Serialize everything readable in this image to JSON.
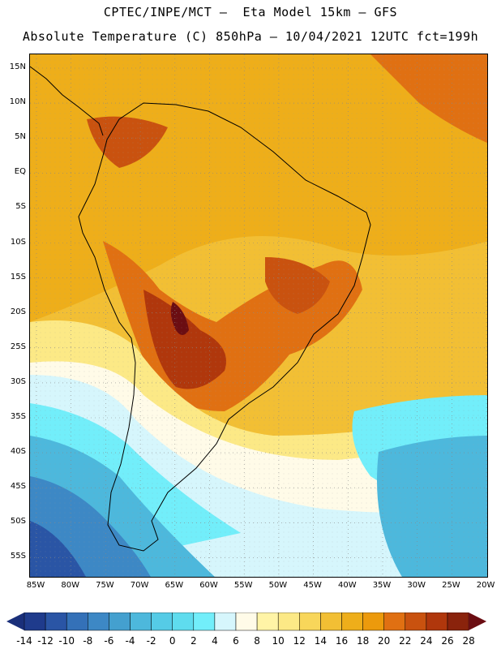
{
  "title_line1": "CPTEC/INPE/MCT –  Eta Model 15km – GFS",
  "title_line2": "Absolute Temperature (C) 850hPa – 10/04/2021 12UTC fct=199h",
  "lat_labels": [
    "15N",
    "10N",
    "5N",
    "EQ",
    "5S",
    "10S",
    "15S",
    "20S",
    "25S",
    "30S",
    "35S",
    "40S",
    "45S",
    "50S",
    "55S"
  ],
  "lon_labels": [
    "85W",
    "80W",
    "75W",
    "70W",
    "65W",
    "60W",
    "55W",
    "50W",
    "45W",
    "40W",
    "35W",
    "30W",
    "25W",
    "20W"
  ],
  "colorbar": {
    "labels": [
      "-14",
      "-12",
      "-10",
      "-8",
      "-6",
      "-4",
      "-2",
      "0",
      "2",
      "4",
      "6",
      "8",
      "10",
      "12",
      "14",
      "16",
      "18",
      "20",
      "22",
      "24",
      "26",
      "28"
    ],
    "colors": [
      "#1f3b8c",
      "#2a55a5",
      "#3471b8",
      "#3d88c5",
      "#44a0cf",
      "#4db8dc",
      "#55cbe6",
      "#5fdcee",
      "#72eefa",
      "#d6f6fc",
      "#fffbe8",
      "#fff4a6",
      "#fce986",
      "#f8d65a",
      "#f2bf34",
      "#eeae1a",
      "#ec9a0c",
      "#e07012",
      "#c9520f",
      "#b0370c",
      "#8a230c"
    ],
    "under_color": "#1a2f7a",
    "over_color": "#6b0d12"
  },
  "map_colors": {
    "ocean_warm": "#f2bf34",
    "tropics_north": "#eeae1a",
    "hot_land": "#c9520f",
    "hotter": "#b0370c",
    "hottest": "#6b0d12",
    "mild": "#fce986",
    "cool": "#fffbe8",
    "cold1": "#d6f6fc",
    "cold2": "#72eefa",
    "cold3": "#4db8dc",
    "cold4": "#3d88c5",
    "cold5": "#2a55a5"
  }
}
